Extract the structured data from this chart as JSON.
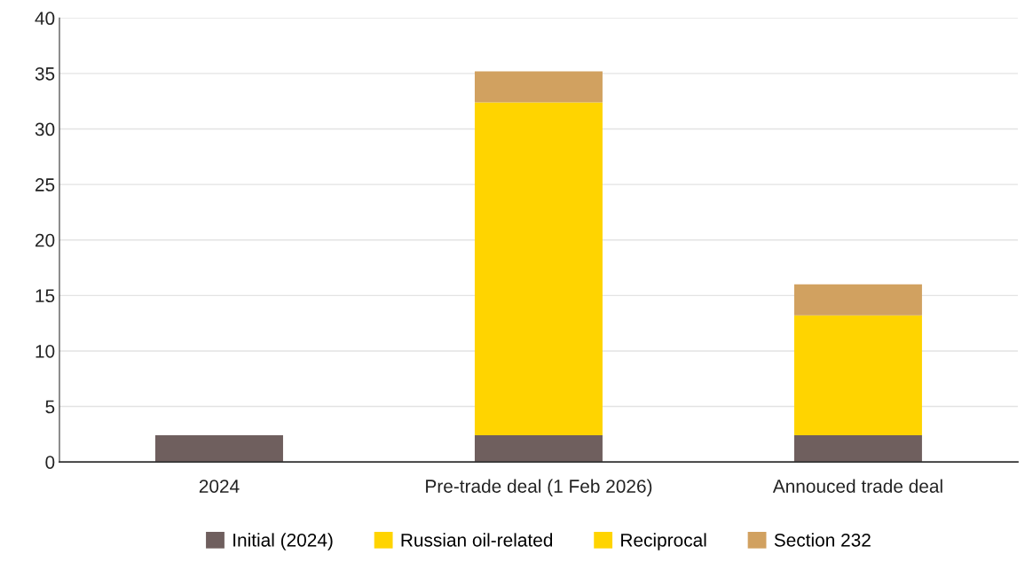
{
  "chart_data": {
    "type": "bar",
    "stacked": true,
    "categories": [
      "2024",
      "Pre-trade deal (1 Feb 2026)",
      "Annouced trade deal"
    ],
    "series": [
      {
        "name": "Initial (2024)",
        "color": "#6f5f5e",
        "values": [
          2.4,
          2.4,
          2.4
        ]
      },
      {
        "name": "Russian oil-related",
        "color": "#ffd400",
        "values": [
          null,
          15.1,
          null
        ]
      },
      {
        "name": "Reciprocal",
        "color": "#ffd400",
        "values": [
          null,
          14.9,
          10.8
        ]
      },
      {
        "name": "Section 232",
        "color": "#d1a160",
        "values": [
          null,
          2.8,
          2.8
        ]
      }
    ],
    "ylim": [
      0,
      40
    ],
    "yticks": [
      0,
      5,
      10,
      15,
      20,
      25,
      30,
      35,
      40
    ],
    "grid": "y",
    "legend": "bottom"
  }
}
